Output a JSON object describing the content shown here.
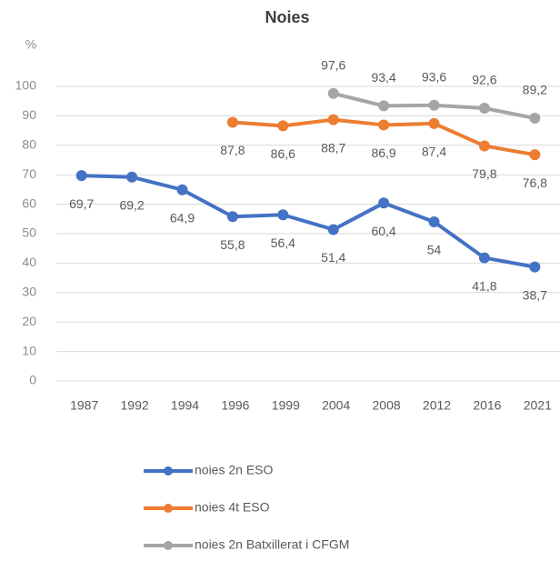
{
  "chart_data": {
    "type": "line",
    "title": "Noies",
    "y_label": "%",
    "categories": [
      "1987",
      "1992",
      "1994",
      "1996",
      "1999",
      "2004",
      "2008",
      "2012",
      "2016",
      "2021"
    ],
    "ylim": [
      0,
      100
    ],
    "yticks": [
      0,
      10,
      20,
      30,
      40,
      50,
      60,
      70,
      80,
      90,
      100
    ],
    "grid": true,
    "legend": "bottom",
    "series": [
      {
        "name": "noies 2n ESO",
        "color": "#4472c4",
        "values": [
          69.7,
          69.2,
          64.9,
          55.8,
          56.4,
          51.4,
          60.4,
          54,
          41.8,
          38.7
        ],
        "value_labels": [
          "69,7",
          "69,2",
          "64,9",
          "55,8",
          "56,4",
          "51,4",
          "60,4",
          "54",
          "41,8",
          "38,7"
        ]
      },
      {
        "name": "noies 4t ESO",
        "color": "#ed7d31",
        "values": [
          null,
          null,
          null,
          87.8,
          86.6,
          88.7,
          86.9,
          87.4,
          79.8,
          76.8
        ],
        "value_labels": [
          null,
          null,
          null,
          "87,8",
          "86,6",
          "88,7",
          "86,9",
          "87,4",
          "79,8",
          "76,8"
        ]
      },
      {
        "name": "noies 2n Batxillerat i CFGM",
        "color": "#a5a5a5",
        "values": [
          null,
          null,
          null,
          null,
          null,
          97.6,
          93.4,
          93.6,
          92.6,
          89.2
        ],
        "value_labels": [
          null,
          null,
          null,
          null,
          null,
          "97,6",
          "93,4",
          "93,6",
          "92,6",
          "89,2"
        ]
      }
    ]
  }
}
